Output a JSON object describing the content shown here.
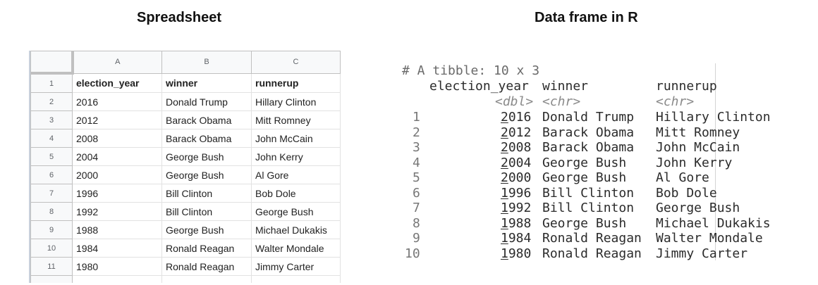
{
  "titles": {
    "left": "Spreadsheet",
    "right": "Data frame in R"
  },
  "spreadsheet": {
    "columns": [
      "A",
      "B",
      "C"
    ],
    "row_numbers": [
      "1",
      "2",
      "3",
      "4",
      "5",
      "6",
      "7",
      "8",
      "9",
      "10",
      "11"
    ],
    "header": [
      "election_year",
      "winner",
      "runnerup"
    ],
    "rows": [
      [
        "2016",
        "Donald Trump",
        "Hillary Clinton"
      ],
      [
        "2012",
        "Barack Obama",
        "Mitt Romney"
      ],
      [
        "2008",
        "Barack Obama",
        "John McCain"
      ],
      [
        "2004",
        "George Bush",
        "John Kerry"
      ],
      [
        "2000",
        "George Bush",
        "Al Gore"
      ],
      [
        "1996",
        "Bill Clinton",
        "Bob Dole"
      ],
      [
        "1992",
        "Bill Clinton",
        "George Bush"
      ],
      [
        "1988",
        "George Bush",
        "Michael Dukakis"
      ],
      [
        "1984",
        "Ronald Reagan",
        "Walter Mondale"
      ],
      [
        "1980",
        "Ronald Reagan",
        "Jimmy Carter"
      ]
    ]
  },
  "r_console": {
    "comment": "# A tibble: 10 x 3",
    "header": [
      "election_year",
      "winner",
      "runnerup"
    ],
    "types": [
      "<dbl>",
      "<chr>",
      "<chr>"
    ],
    "rows": [
      {
        "n": "1",
        "year": "2016",
        "winner": "Donald Trump",
        "runnerup": "Hillary Clinton"
      },
      {
        "n": "2",
        "year": "2012",
        "winner": "Barack Obama",
        "runnerup": "Mitt Romney"
      },
      {
        "n": "3",
        "year": "2008",
        "winner": "Barack Obama",
        "runnerup": "John McCain"
      },
      {
        "n": "4",
        "year": "2004",
        "winner": "George Bush",
        "runnerup": "John Kerry"
      },
      {
        "n": "5",
        "year": "2000",
        "winner": "George Bush",
        "runnerup": "Al Gore"
      },
      {
        "n": "6",
        "year": "1996",
        "winner": "Bill Clinton",
        "runnerup": "Bob Dole"
      },
      {
        "n": "7",
        "year": "1992",
        "winner": "Bill Clinton",
        "runnerup": "George Bush"
      },
      {
        "n": "8",
        "year": "1988",
        "winner": "George Bush",
        "runnerup": "Michael Dukakis"
      },
      {
        "n": "9",
        "year": "1984",
        "winner": "Ronald Reagan",
        "runnerup": "Walter Mondale"
      },
      {
        "n": "10",
        "year": "1980",
        "winner": "Ronald Reagan",
        "runnerup": "Jimmy Carter"
      }
    ]
  }
}
